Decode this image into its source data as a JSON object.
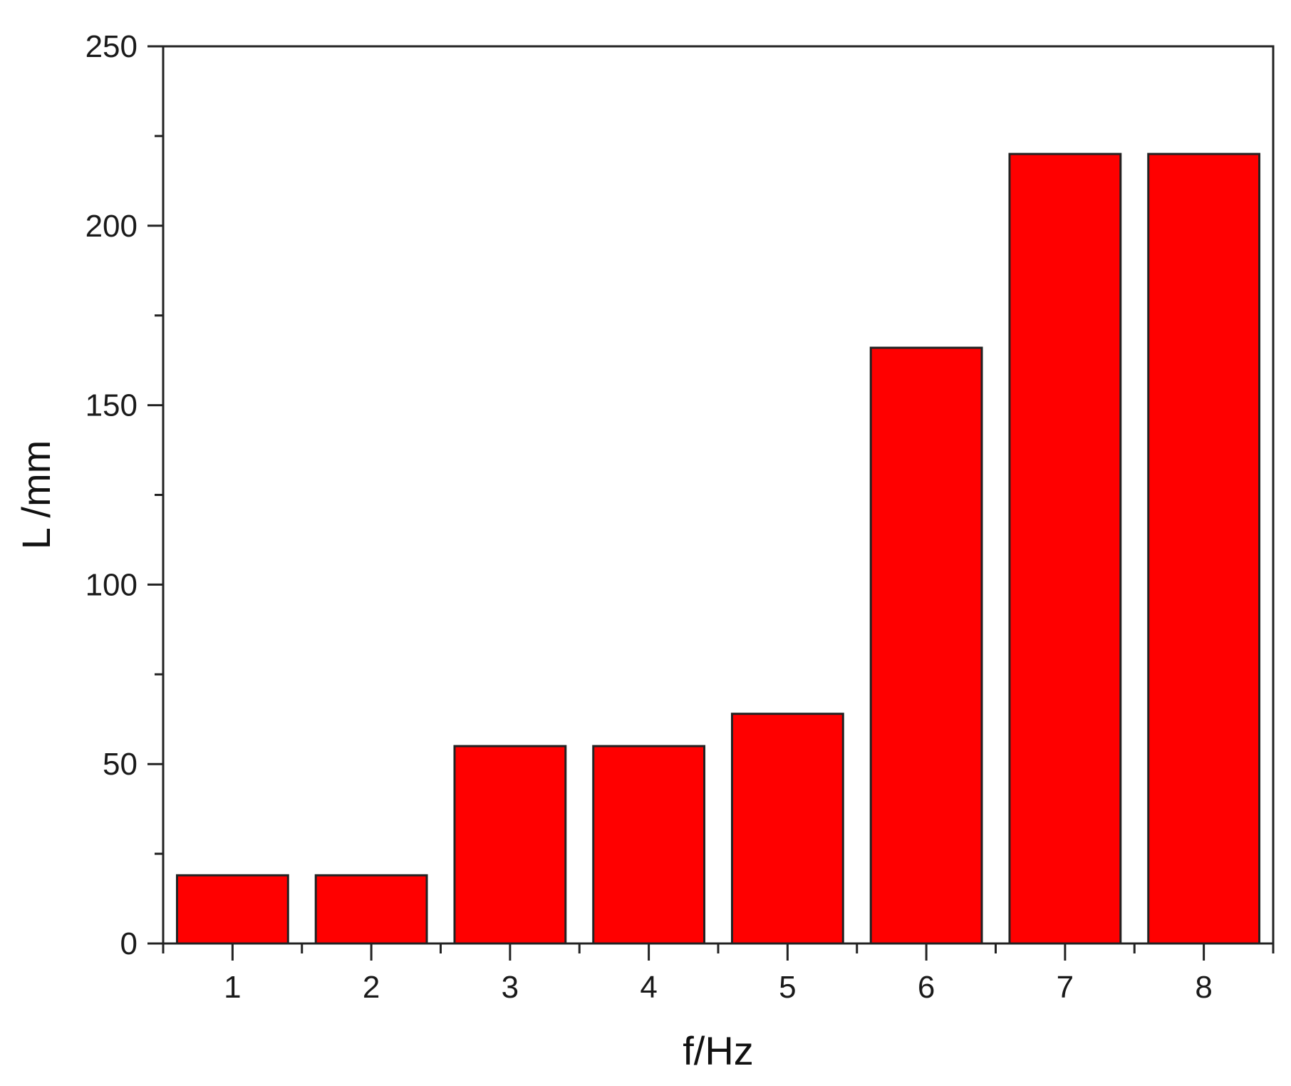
{
  "chart_data": {
    "type": "bar",
    "categories": [
      "1",
      "2",
      "3",
      "4",
      "5",
      "6",
      "7",
      "8"
    ],
    "values": [
      19,
      19,
      55,
      55,
      64,
      166,
      220,
      220
    ],
    "xlabel": "f/Hz",
    "ylabel": "L /mm",
    "ylim": [
      0,
      250
    ],
    "yticks": [
      "0",
      "50",
      "100",
      "150",
      "200",
      "250"
    ],
    "grid": false,
    "bar_color": "#ff0000",
    "bar_edge_color": "#222222"
  }
}
